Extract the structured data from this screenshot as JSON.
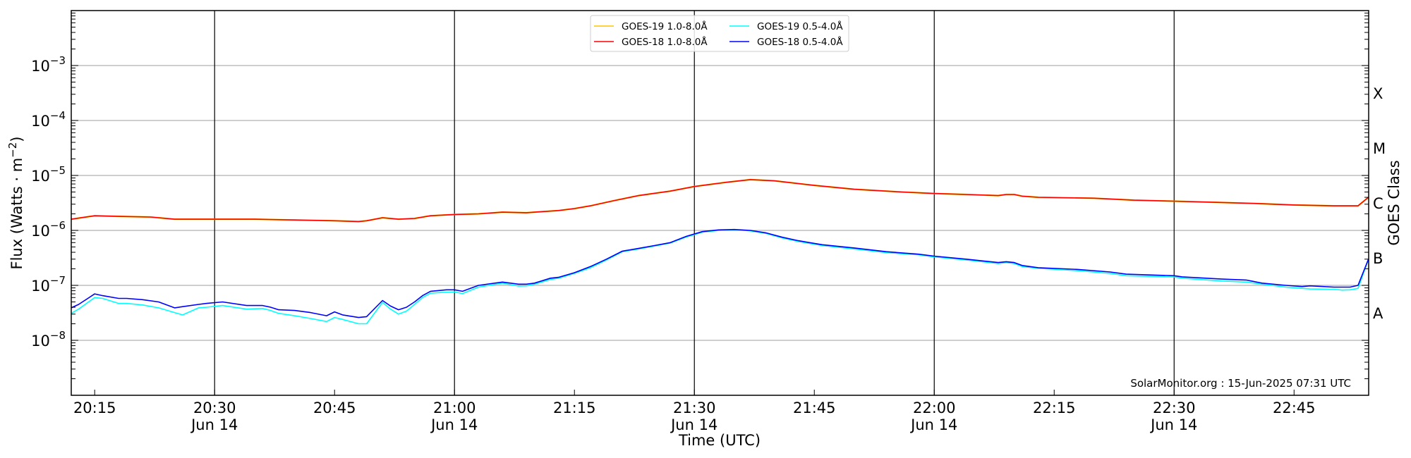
{
  "chart_data": {
    "type": "line",
    "title": "",
    "xlabel": "Time (UTC)",
    "ylabel": "Flux (Watts · m",
    "ylabel_sup": "−2",
    "ylabel_close": ")",
    "y2label": "GOES Class",
    "yscale": "log",
    "ylim": [
      1e-09,
      0.01
    ],
    "xlim": [
      "20:12",
      "22:54"
    ],
    "y_ticks": [
      {
        "exp": -3,
        "base": "10",
        "sup": "−3"
      },
      {
        "exp": -4,
        "base": "10",
        "sup": "−4"
      },
      {
        "exp": -5,
        "base": "10",
        "sup": "−5"
      },
      {
        "exp": -6,
        "base": "10",
        "sup": "−6"
      },
      {
        "exp": -7,
        "base": "10",
        "sup": "−7"
      },
      {
        "exp": -8,
        "base": "10",
        "sup": "−8"
      }
    ],
    "classes": [
      {
        "label": "X",
        "exp": -3.5
      },
      {
        "label": "M",
        "exp": -4.5
      },
      {
        "label": "C",
        "exp": -5.5
      },
      {
        "label": "B",
        "exp": -6.5
      },
      {
        "label": "A",
        "exp": -7.5
      }
    ],
    "x_ticks": [
      {
        "t": "20:15",
        "label": "20:15",
        "date": ""
      },
      {
        "t": "20:30",
        "label": "20:30",
        "date": "Jun 14"
      },
      {
        "t": "20:45",
        "label": "20:45",
        "date": ""
      },
      {
        "t": "21:00",
        "label": "21:00",
        "date": "Jun 14"
      },
      {
        "t": "21:15",
        "label": "21:15",
        "date": ""
      },
      {
        "t": "21:30",
        "label": "21:30",
        "date": "Jun 14"
      },
      {
        "t": "21:45",
        "label": "21:45",
        "date": ""
      },
      {
        "t": "22:00",
        "label": "22:00",
        "date": "Jun 14"
      },
      {
        "t": "22:15",
        "label": "22:15",
        "date": ""
      },
      {
        "t": "22:30",
        "label": "22:30",
        "date": "Jun 14"
      },
      {
        "t": "22:45",
        "label": "22:45",
        "date": ""
      }
    ],
    "grid": true,
    "legend_position": "top-center",
    "annotation": "SolarMonitor.org : 15-Jun-2025 07:31 UTC",
    "series": [
      {
        "name": "GOES-19 1.0-8.0Å",
        "color": "#ffc400",
        "x": [
          "20:12",
          "20:15",
          "20:18",
          "20:22",
          "20:25",
          "20:30",
          "20:35",
          "20:40",
          "20:45",
          "20:48",
          "20:49",
          "20:51",
          "20:53",
          "20:55",
          "20:57",
          "21:00",
          "21:03",
          "21:06",
          "21:09",
          "21:11",
          "21:13",
          "21:15",
          "21:17",
          "21:20",
          "21:23",
          "21:27",
          "21:30",
          "21:34",
          "21:37",
          "21:40",
          "21:45",
          "21:50",
          "21:56",
          "22:00",
          "22:04",
          "22:08",
          "22:09",
          "22:10",
          "22:11",
          "22:13",
          "22:20",
          "22:25",
          "22:30",
          "22:35",
          "22:40",
          "22:45",
          "22:50",
          "22:53",
          "22:54"
        ],
        "values": [
          1.6e-06,
          1.85e-06,
          1.8e-06,
          1.75e-06,
          1.6e-06,
          1.6e-06,
          1.6e-06,
          1.55e-06,
          1.5e-06,
          1.45e-06,
          1.5e-06,
          1.7e-06,
          1.6e-06,
          1.65e-06,
          1.85e-06,
          1.95e-06,
          2e-06,
          2.15e-06,
          2.1e-06,
          2.2e-06,
          2.3e-06,
          2.5e-06,
          2.8e-06,
          3.5e-06,
          4.3e-06,
          5.2e-06,
          6.3e-06,
          7.5e-06,
          8.4e-06,
          8e-06,
          6.6e-06,
          5.6e-06,
          5e-06,
          4.7e-06,
          4.5e-06,
          4.3e-06,
          4.5e-06,
          4.5e-06,
          4.2e-06,
          4e-06,
          3.85e-06,
          3.55e-06,
          3.4e-06,
          3.25e-06,
          3.1e-06,
          2.9e-06,
          2.8e-06,
          2.8e-06,
          4e-06
        ]
      },
      {
        "name": "GOES-18 1.0-8.0Å",
        "color": "#ff0000",
        "x": [
          "20:12",
          "20:15",
          "20:18",
          "20:22",
          "20:25",
          "20:30",
          "20:35",
          "20:40",
          "20:45",
          "20:48",
          "20:49",
          "20:51",
          "20:53",
          "20:55",
          "20:57",
          "21:00",
          "21:03",
          "21:06",
          "21:09",
          "21:11",
          "21:13",
          "21:15",
          "21:17",
          "21:20",
          "21:23",
          "21:27",
          "21:30",
          "21:34",
          "21:37",
          "21:40",
          "21:45",
          "21:50",
          "21:56",
          "22:00",
          "22:04",
          "22:08",
          "22:09",
          "22:10",
          "22:11",
          "22:13",
          "22:20",
          "22:25",
          "22:30",
          "22:35",
          "22:40",
          "22:45",
          "22:50",
          "22:53",
          "22:54"
        ],
        "values": [
          1.6e-06,
          1.85e-06,
          1.8e-06,
          1.75e-06,
          1.6e-06,
          1.6e-06,
          1.6e-06,
          1.55e-06,
          1.5e-06,
          1.45e-06,
          1.5e-06,
          1.7e-06,
          1.6e-06,
          1.65e-06,
          1.85e-06,
          1.95e-06,
          2e-06,
          2.15e-06,
          2.1e-06,
          2.2e-06,
          2.3e-06,
          2.5e-06,
          2.8e-06,
          3.5e-06,
          4.3e-06,
          5.2e-06,
          6.3e-06,
          7.5e-06,
          8.4e-06,
          8e-06,
          6.6e-06,
          5.6e-06,
          5e-06,
          4.7e-06,
          4.5e-06,
          4.3e-06,
          4.5e-06,
          4.5e-06,
          4.2e-06,
          4e-06,
          3.85e-06,
          3.55e-06,
          3.4e-06,
          3.25e-06,
          3.1e-06,
          2.9e-06,
          2.8e-06,
          2.8e-06,
          4e-06
        ]
      },
      {
        "name": "GOES-19 0.5-4.0Å",
        "color": "#00ffff",
        "x": [
          "20:12",
          "20:13",
          "20:15",
          "20:16",
          "20:18",
          "20:19",
          "20:21",
          "20:23",
          "20:25",
          "20:26",
          "20:28",
          "20:29",
          "20:31",
          "20:34",
          "20:36",
          "20:37",
          "20:38",
          "20:40",
          "20:42",
          "20:44",
          "20:45",
          "20:46",
          "20:48",
          "20:49",
          "20:51",
          "20:52",
          "20:53",
          "20:54",
          "20:55",
          "20:56",
          "20:57",
          "20:59",
          "21:00",
          "21:01",
          "21:03",
          "21:06",
          "21:08",
          "21:09",
          "21:10",
          "21:12",
          "21:13",
          "21:15",
          "21:17",
          "21:19",
          "21:21",
          "21:23",
          "21:25",
          "21:27",
          "21:29",
          "21:31",
          "21:33",
          "21:35",
          "21:37",
          "21:39",
          "21:41",
          "21:43",
          "21:46",
          "21:50",
          "21:54",
          "21:58",
          "22:00",
          "22:04",
          "22:08",
          "22:09",
          "22:10",
          "22:11",
          "22:13",
          "22:18",
          "22:22",
          "22:24",
          "22:30",
          "22:31",
          "22:36",
          "22:39",
          "22:41",
          "22:44",
          "22:46",
          "22:47",
          "22:50",
          "22:51",
          "22:52",
          "22:53",
          "22:54"
        ],
        "values": [
          3.1e-08,
          3.7e-08,
          6e-08,
          5.8e-08,
          4.7e-08,
          4.7e-08,
          4.4e-08,
          3.9e-08,
          3.2e-08,
          2.9e-08,
          3.9e-08,
          4e-08,
          4.3e-08,
          3.7e-08,
          3.8e-08,
          3.5e-08,
          3.1e-08,
          2.8e-08,
          2.5e-08,
          2.2e-08,
          2.6e-08,
          2.4e-08,
          2e-08,
          2e-08,
          4.9e-08,
          3.7e-08,
          3e-08,
          3.4e-08,
          4.5e-08,
          6e-08,
          7.2e-08,
          7.5e-08,
          7.6e-08,
          7.1e-08,
          9.3e-08,
          1.1e-07,
          9.7e-08,
          9.8e-08,
          1.05e-07,
          1.28e-07,
          1.35e-07,
          1.65e-07,
          2.1e-07,
          2.9e-07,
          4.1e-07,
          4.6e-07,
          5.2e-07,
          5.9e-07,
          7.6e-07,
          9.3e-07,
          1e-06,
          1.03e-06,
          9.8e-07,
          8.8e-07,
          7.3e-07,
          6.3e-07,
          5.3e-07,
          4.6e-07,
          3.95e-07,
          3.6e-07,
          3.3e-07,
          2.9e-07,
          2.5e-07,
          2.6e-07,
          2.5e-07,
          2.2e-07,
          2.05e-07,
          1.85e-07,
          1.65e-07,
          1.5e-07,
          1.42e-07,
          1.35e-07,
          1.2e-07,
          1.15e-07,
          1.05e-07,
          9.3e-08,
          8.8e-08,
          8.6e-08,
          8.5e-08,
          8.2e-08,
          8.3e-08,
          8.8e-08,
          3e-07
        ]
      },
      {
        "name": "GOES-18 0.5-4.0Å",
        "color": "#0000ff",
        "x": [
          "20:12",
          "20:13",
          "20:15",
          "20:16",
          "20:18",
          "20:19",
          "20:21",
          "20:23",
          "20:25",
          "20:26",
          "20:28",
          "20:29",
          "20:31",
          "20:34",
          "20:36",
          "20:37",
          "20:38",
          "20:40",
          "20:42",
          "20:44",
          "20:45",
          "20:46",
          "20:48",
          "20:49",
          "20:51",
          "20:52",
          "20:53",
          "20:54",
          "20:55",
          "20:56",
          "20:57",
          "20:59",
          "21:00",
          "21:01",
          "21:03",
          "21:06",
          "21:08",
          "21:09",
          "21:10",
          "21:12",
          "21:13",
          "21:15",
          "21:17",
          "21:19",
          "21:21",
          "21:23",
          "21:25",
          "21:27",
          "21:29",
          "21:31",
          "21:33",
          "21:35",
          "21:37",
          "21:39",
          "21:41",
          "21:43",
          "21:46",
          "21:50",
          "21:54",
          "21:58",
          "22:00",
          "22:04",
          "22:08",
          "22:09",
          "22:10",
          "22:11",
          "22:13",
          "22:18",
          "22:22",
          "22:24",
          "22:30",
          "22:31",
          "22:36",
          "22:39",
          "22:41",
          "22:44",
          "22:46",
          "22:47",
          "22:50",
          "22:51",
          "22:52",
          "22:53",
          "22:54"
        ],
        "values": [
          3.9e-08,
          4.5e-08,
          7e-08,
          6.5e-08,
          5.8e-08,
          5.8e-08,
          5.5e-08,
          5e-08,
          3.9e-08,
          4.1e-08,
          4.5e-08,
          4.7e-08,
          5e-08,
          4.3e-08,
          4.3e-08,
          4e-08,
          3.6e-08,
          3.5e-08,
          3.2e-08,
          2.8e-08,
          3.3e-08,
          2.9e-08,
          2.6e-08,
          2.7e-08,
          5.3e-08,
          4.2e-08,
          3.6e-08,
          4e-08,
          5e-08,
          6.5e-08,
          7.8e-08,
          8.3e-08,
          8.3e-08,
          7.8e-08,
          1e-07,
          1.15e-07,
          1.05e-07,
          1.05e-07,
          1.1e-07,
          1.35e-07,
          1.4e-07,
          1.7e-07,
          2.2e-07,
          3e-07,
          4.2e-07,
          4.7e-07,
          5.3e-07,
          6e-07,
          7.8e-07,
          9.5e-07,
          1.02e-06,
          1.04e-06,
          1e-06,
          9e-07,
          7.5e-07,
          6.5e-07,
          5.5e-07,
          4.8e-07,
          4.1e-07,
          3.7e-07,
          3.4e-07,
          3e-07,
          2.6e-07,
          2.7e-07,
          2.6e-07,
          2.3e-07,
          2.1e-07,
          1.95e-07,
          1.75e-07,
          1.6e-07,
          1.5e-07,
          1.43e-07,
          1.3e-07,
          1.25e-07,
          1.1e-07,
          1e-07,
          9.5e-08,
          9.8e-08,
          9.3e-08,
          9.3e-08,
          9.3e-08,
          1e-07,
          3e-07
        ]
      }
    ]
  }
}
